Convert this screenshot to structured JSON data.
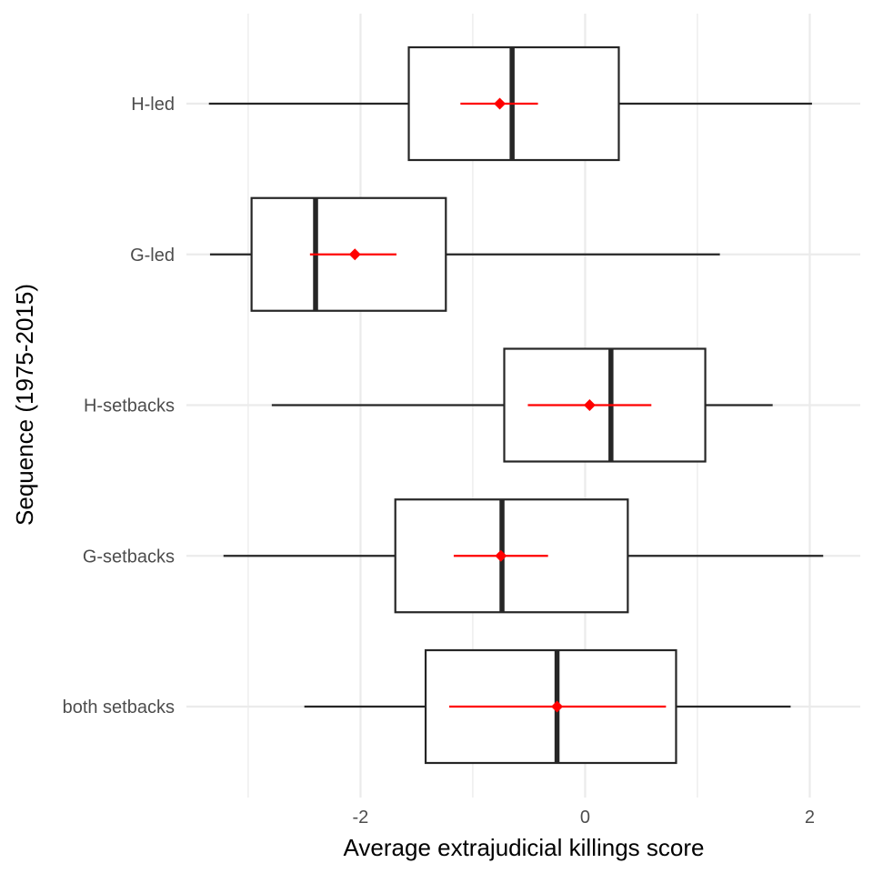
{
  "chart_data": {
    "type": "boxplot",
    "orientation": "horizontal",
    "xlabel": "Average extrajudicial killings score",
    "ylabel": "Sequence (1975-2015)",
    "xlim": [
      -3.55,
      2.45
    ],
    "x_ticks": [
      -2,
      0,
      2
    ],
    "x_tick_labels": [
      "-2",
      "0",
      "2"
    ],
    "grid": true,
    "categories": [
      "H-led",
      "G-led",
      "H-setbacks",
      "G-setbacks",
      "both setbacks"
    ],
    "boxes": [
      {
        "category": "H-led",
        "whisker_low": -3.35,
        "q1": -1.57,
        "median": -0.65,
        "q3": 0.3,
        "whisker_high": 2.02,
        "mean": -0.76,
        "ci_low": -1.11,
        "ci_high": -0.42
      },
      {
        "category": "G-led",
        "whisker_low": -3.34,
        "q1": -2.97,
        "median": -2.4,
        "q3": -1.24,
        "whisker_high": 1.2,
        "mean": -2.05,
        "ci_low": -2.45,
        "ci_high": -1.68
      },
      {
        "category": "H-setbacks",
        "whisker_low": -2.79,
        "q1": -0.72,
        "median": 0.23,
        "q3": 1.07,
        "whisker_high": 1.67,
        "mean": 0.04,
        "ci_low": -0.51,
        "ci_high": 0.59
      },
      {
        "category": "G-setbacks",
        "whisker_low": -3.22,
        "q1": -1.69,
        "median": -0.74,
        "q3": 0.38,
        "whisker_high": 2.12,
        "mean": -0.75,
        "ci_low": -1.17,
        "ci_high": -0.33
      },
      {
        "category": "both setbacks",
        "whisker_low": -2.5,
        "q1": -1.42,
        "median": -0.25,
        "q3": 0.81,
        "whisker_high": 1.83,
        "mean": -0.25,
        "ci_low": -1.21,
        "ci_high": 0.72
      }
    ],
    "colors": {
      "box": "#262626",
      "mean": "#ff0000",
      "grid": "#ebebeb"
    }
  }
}
